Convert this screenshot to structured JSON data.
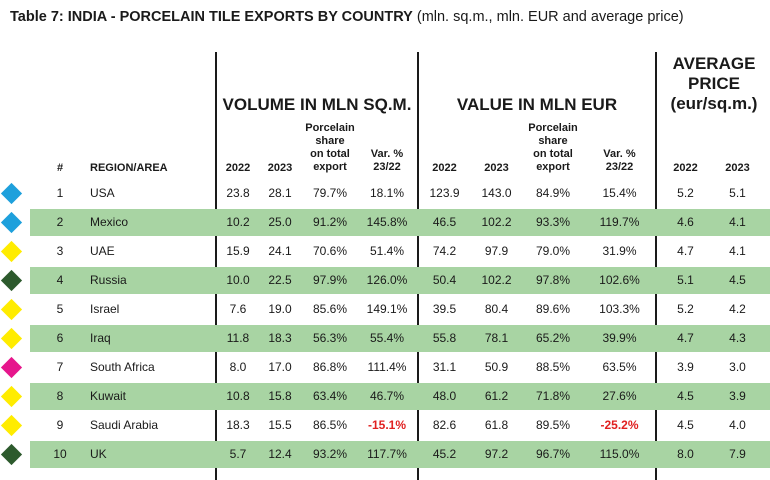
{
  "title": {
    "bold": "Table 7: INDIA - PORCELAIN TILE EXPORTS BY COUNTRY",
    "normal": "(mln. sq.m., mln. EUR and average price)"
  },
  "groups": {
    "volume": "VOLUME IN MLN SQ.M.",
    "value": "VALUE IN MLN EUR",
    "avg_line1": "AVERAGE",
    "avg_line2": "PRICE",
    "avg_line3": "(eur/sq.m.)"
  },
  "columns": {
    "rank": "#",
    "region": "REGION/AREA",
    "y2022": "2022",
    "y2023": "2023",
    "share_l1": "Porcelain",
    "share_l2": "share",
    "share_l3": "on total",
    "share_l4": "export",
    "var_l1": "Var. %",
    "var_l2": "23/22"
  },
  "colors": {
    "row_shade": "#a8d4a3",
    "negative": "#e02020",
    "marker_blue": "#1ea0dc",
    "marker_yellow": "#ffec00",
    "marker_darkgreen": "#2d5a2d",
    "marker_magenta": "#e6168c"
  },
  "rows": [
    {
      "rank": "1",
      "region": "USA",
      "marker": "#1ea0dc",
      "vol22": "23.8",
      "vol23": "28.1",
      "vshare": "79.7%",
      "vvar": "18.1%",
      "val22": "123.9",
      "val23": "143.0",
      "valshare": "84.9%",
      "valvar": "15.4%",
      "p22": "5.2",
      "p23": "5.1"
    },
    {
      "rank": "2",
      "region": "Mexico",
      "marker": "#1ea0dc",
      "vol22": "10.2",
      "vol23": "25.0",
      "vshare": "91.2%",
      "vvar": "145.8%",
      "val22": "46.5",
      "val23": "102.2",
      "valshare": "93.3%",
      "valvar": "119.7%",
      "p22": "4.6",
      "p23": "4.1"
    },
    {
      "rank": "3",
      "region": "UAE",
      "marker": "#ffec00",
      "vol22": "15.9",
      "vol23": "24.1",
      "vshare": "70.6%",
      "vvar": "51.4%",
      "val22": "74.2",
      "val23": "97.9",
      "valshare": "79.0%",
      "valvar": "31.9%",
      "p22": "4.7",
      "p23": "4.1"
    },
    {
      "rank": "4",
      "region": "Russia",
      "marker": "#2d5a2d",
      "vol22": "10.0",
      "vol23": "22.5",
      "vshare": "97.9%",
      "vvar": "126.0%",
      "val22": "50.4",
      "val23": "102.2",
      "valshare": "97.8%",
      "valvar": "102.6%",
      "p22": "5.1",
      "p23": "4.5"
    },
    {
      "rank": "5",
      "region": "Israel",
      "marker": "#ffec00",
      "vol22": "7.6",
      "vol23": "19.0",
      "vshare": "85.6%",
      "vvar": "149.1%",
      "val22": "39.5",
      "val23": "80.4",
      "valshare": "89.6%",
      "valvar": "103.3%",
      "p22": "5.2",
      "p23": "4.2"
    },
    {
      "rank": "6",
      "region": "Iraq",
      "marker": "#ffec00",
      "vol22": "11.8",
      "vol23": "18.3",
      "vshare": "56.3%",
      "vvar": "55.4%",
      "val22": "55.8",
      "val23": "78.1",
      "valshare": "65.2%",
      "valvar": "39.9%",
      "p22": "4.7",
      "p23": "4.3"
    },
    {
      "rank": "7",
      "region": "South Africa",
      "marker": "#e6168c",
      "vol22": "8.0",
      "vol23": "17.0",
      "vshare": "86.8%",
      "vvar": "111.4%",
      "val22": "31.1",
      "val23": "50.9",
      "valshare": "88.5%",
      "valvar": "63.5%",
      "p22": "3.9",
      "p23": "3.0"
    },
    {
      "rank": "8",
      "region": "Kuwait",
      "marker": "#ffec00",
      "vol22": "10.8",
      "vol23": "15.8",
      "vshare": "63.4%",
      "vvar": "46.7%",
      "val22": "48.0",
      "val23": "61.2",
      "valshare": "71.8%",
      "valvar": "27.6%",
      "p22": "4.5",
      "p23": "3.9"
    },
    {
      "rank": "9",
      "region": "Saudi Arabia",
      "marker": "#ffec00",
      "vol22": "18.3",
      "vol23": "15.5",
      "vshare": "86.5%",
      "vvar": "-15.1%",
      "val22": "82.6",
      "val23": "61.8",
      "valshare": "89.5%",
      "valvar": "-25.2%",
      "p22": "4.5",
      "p23": "4.0"
    },
    {
      "rank": "10",
      "region": "UK",
      "marker": "#2d5a2d",
      "vol22": "5.7",
      "vol23": "12.4",
      "vshare": "93.2%",
      "vvar": "117.7%",
      "val22": "45.2",
      "val23": "97.2",
      "valshare": "96.7%",
      "valvar": "115.0%",
      "p22": "8.0",
      "p23": "7.9"
    }
  ]
}
